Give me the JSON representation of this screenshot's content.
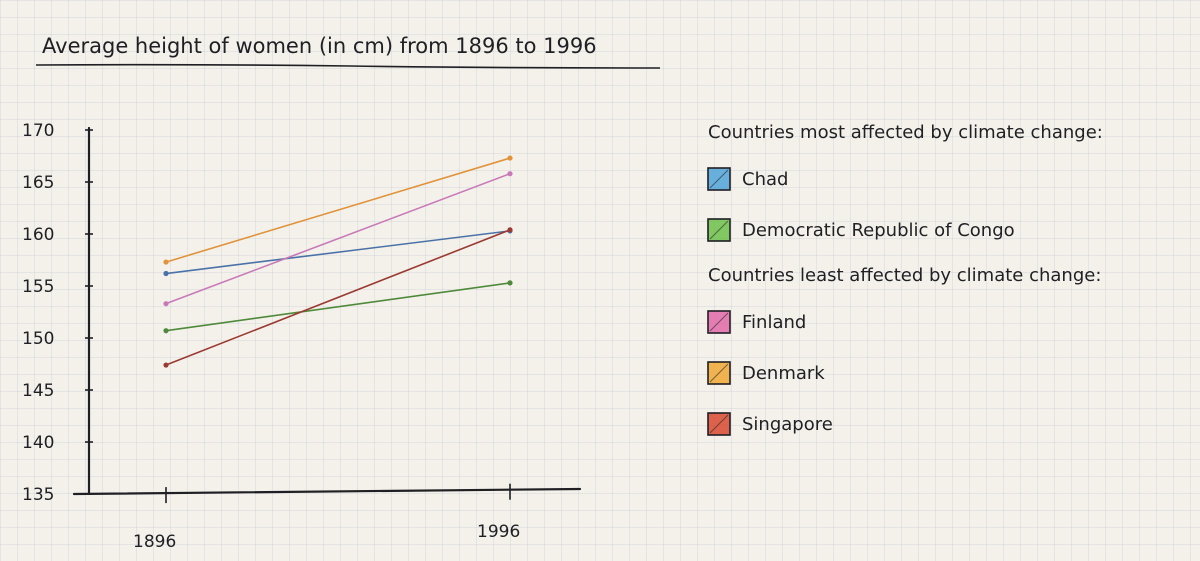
{
  "chart_data": {
    "type": "line",
    "title": "Average height of women (in cm) from 1896 to 1996",
    "xlabel": "",
    "ylabel": "",
    "categories": [
      "1896",
      "1996"
    ],
    "yticks": [
      170,
      165,
      160,
      155,
      150,
      145,
      140,
      135
    ],
    "ylim": [
      135,
      170
    ],
    "grid": false,
    "legend_placement": "right",
    "series": [
      {
        "name": "Chad",
        "values": [
          156.2,
          160.3
        ],
        "color": "#4a72a8",
        "swatch": "#4fa3d8"
      },
      {
        "name": "Democratic Republic of Congo",
        "values": [
          150.7,
          155.3
        ],
        "color": "#4e8a3a",
        "swatch": "#6cbf4a"
      },
      {
        "name": "Finland",
        "values": [
          153.3,
          165.8
        ],
        "color": "#c879b8",
        "swatch": "#e06aa8"
      },
      {
        "name": "Denmark",
        "values": [
          157.3,
          167.3
        ],
        "color": "#e0933a",
        "swatch": "#f0a835"
      },
      {
        "name": "Singapore",
        "values": [
          147.4,
          160.4
        ],
        "color": "#9a3a32",
        "swatch": "#d8492f"
      }
    ],
    "legend": {
      "groups": [
        {
          "heading": "Countries most affected by climate change:",
          "items": [
            "Chad",
            "Democratic Republic of Congo"
          ]
        },
        {
          "heading": "Countries least affected by climate change:",
          "items": [
            "Finland",
            "Denmark",
            "Singapore"
          ]
        }
      ]
    }
  }
}
